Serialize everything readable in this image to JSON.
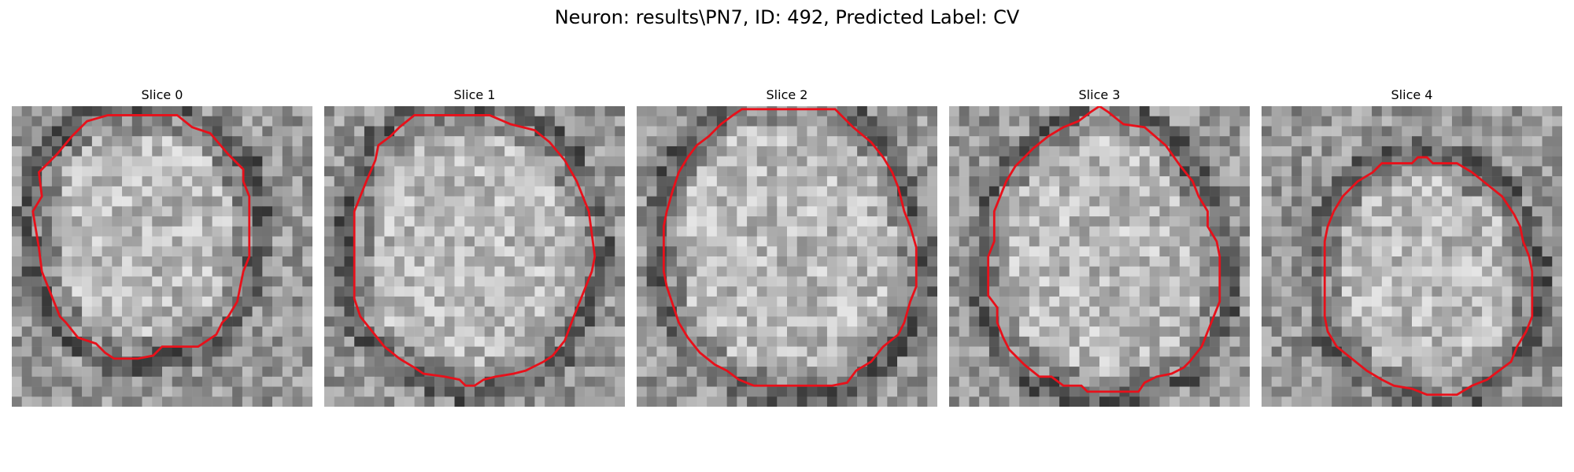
{
  "figure": {
    "suptitle": "Neuron: results\\PN7, ID: 492, Predicted Label: CV"
  },
  "panels": [
    {
      "title": "Slice 0",
      "outline": [
        [
          0.25,
          0.05
        ],
        [
          0.32,
          0.03
        ],
        [
          0.55,
          0.03
        ],
        [
          0.6,
          0.07
        ],
        [
          0.66,
          0.09
        ],
        [
          0.72,
          0.16
        ],
        [
          0.77,
          0.21
        ],
        [
          0.77,
          0.25
        ],
        [
          0.79,
          0.3
        ],
        [
          0.79,
          0.5
        ],
        [
          0.77,
          0.55
        ],
        [
          0.75,
          0.65
        ],
        [
          0.72,
          0.7
        ],
        [
          0.7,
          0.72
        ],
        [
          0.68,
          0.76
        ],
        [
          0.62,
          0.8
        ],
        [
          0.58,
          0.8
        ],
        [
          0.5,
          0.8
        ],
        [
          0.48,
          0.82
        ],
        [
          0.47,
          0.83
        ],
        [
          0.42,
          0.84
        ],
        [
          0.34,
          0.84
        ],
        [
          0.31,
          0.82
        ],
        [
          0.28,
          0.79
        ],
        [
          0.22,
          0.77
        ],
        [
          0.18,
          0.72
        ],
        [
          0.16,
          0.7
        ],
        [
          0.14,
          0.65
        ],
        [
          0.12,
          0.6
        ],
        [
          0.1,
          0.55
        ],
        [
          0.09,
          0.47
        ],
        [
          0.07,
          0.35
        ],
        [
          0.1,
          0.3
        ],
        [
          0.09,
          0.22
        ],
        [
          0.12,
          0.19
        ],
        [
          0.15,
          0.16
        ],
        [
          0.2,
          0.1
        ]
      ]
    },
    {
      "title": "Slice 1",
      "outline": [
        [
          0.3,
          0.03
        ],
        [
          0.55,
          0.03
        ],
        [
          0.62,
          0.06
        ],
        [
          0.7,
          0.08
        ],
        [
          0.75,
          0.12
        ],
        [
          0.8,
          0.18
        ],
        [
          0.84,
          0.25
        ],
        [
          0.86,
          0.3
        ],
        [
          0.88,
          0.35
        ],
        [
          0.9,
          0.5
        ],
        [
          0.89,
          0.55
        ],
        [
          0.87,
          0.6
        ],
        [
          0.85,
          0.65
        ],
        [
          0.83,
          0.7
        ],
        [
          0.8,
          0.78
        ],
        [
          0.76,
          0.83
        ],
        [
          0.73,
          0.85
        ],
        [
          0.67,
          0.88
        ],
        [
          0.63,
          0.89
        ],
        [
          0.57,
          0.9
        ],
        [
          0.53,
          0.91
        ],
        [
          0.5,
          0.93
        ],
        [
          0.47,
          0.93
        ],
        [
          0.45,
          0.91
        ],
        [
          0.4,
          0.9
        ],
        [
          0.33,
          0.89
        ],
        [
          0.3,
          0.87
        ],
        [
          0.25,
          0.84
        ],
        [
          0.2,
          0.8
        ],
        [
          0.16,
          0.75
        ],
        [
          0.12,
          0.7
        ],
        [
          0.1,
          0.64
        ],
        [
          0.1,
          0.55
        ],
        [
          0.1,
          0.35
        ],
        [
          0.12,
          0.3
        ],
        [
          0.14,
          0.25
        ],
        [
          0.17,
          0.18
        ],
        [
          0.18,
          0.13
        ],
        [
          0.22,
          0.1
        ],
        [
          0.25,
          0.07
        ]
      ]
    },
    {
      "title": "Slice 2",
      "outline": [
        [
          0.32,
          0.03
        ],
        [
          0.35,
          0.01
        ],
        [
          0.66,
          0.01
        ],
        [
          0.7,
          0.05
        ],
        [
          0.72,
          0.07
        ],
        [
          0.78,
          0.12
        ],
        [
          0.82,
          0.17
        ],
        [
          0.85,
          0.22
        ],
        [
          0.87,
          0.27
        ],
        [
          0.89,
          0.35
        ],
        [
          0.91,
          0.4
        ],
        [
          0.93,
          0.47
        ],
        [
          0.93,
          0.6
        ],
        [
          0.91,
          0.65
        ],
        [
          0.89,
          0.72
        ],
        [
          0.87,
          0.76
        ],
        [
          0.82,
          0.8
        ],
        [
          0.78,
          0.85
        ],
        [
          0.73,
          0.88
        ],
        [
          0.7,
          0.92
        ],
        [
          0.65,
          0.93
        ],
        [
          0.39,
          0.93
        ],
        [
          0.34,
          0.91
        ],
        [
          0.3,
          0.88
        ],
        [
          0.26,
          0.86
        ],
        [
          0.21,
          0.82
        ],
        [
          0.17,
          0.77
        ],
        [
          0.14,
          0.72
        ],
        [
          0.12,
          0.66
        ],
        [
          0.1,
          0.6
        ],
        [
          0.09,
          0.55
        ],
        [
          0.09,
          0.4
        ],
        [
          0.1,
          0.35
        ],
        [
          0.12,
          0.28
        ],
        [
          0.14,
          0.22
        ],
        [
          0.17,
          0.17
        ],
        [
          0.2,
          0.13
        ],
        [
          0.24,
          0.1
        ],
        [
          0.28,
          0.06
        ]
      ]
    },
    {
      "title": "Slice 3",
      "outline": [
        [
          0.5,
          0.0
        ],
        [
          0.53,
          0.02
        ],
        [
          0.58,
          0.06
        ],
        [
          0.65,
          0.07
        ],
        [
          0.72,
          0.13
        ],
        [
          0.77,
          0.2
        ],
        [
          0.81,
          0.25
        ],
        [
          0.83,
          0.3
        ],
        [
          0.86,
          0.35
        ],
        [
          0.86,
          0.4
        ],
        [
          0.89,
          0.45
        ],
        [
          0.9,
          0.5
        ],
        [
          0.9,
          0.65
        ],
        [
          0.88,
          0.7
        ],
        [
          0.86,
          0.75
        ],
        [
          0.84,
          0.8
        ],
        [
          0.8,
          0.85
        ],
        [
          0.78,
          0.87
        ],
        [
          0.74,
          0.89
        ],
        [
          0.69,
          0.9
        ],
        [
          0.65,
          0.92
        ],
        [
          0.63,
          0.95
        ],
        [
          0.46,
          0.95
        ],
        [
          0.44,
          0.93
        ],
        [
          0.38,
          0.93
        ],
        [
          0.34,
          0.9
        ],
        [
          0.3,
          0.9
        ],
        [
          0.25,
          0.86
        ],
        [
          0.2,
          0.81
        ],
        [
          0.18,
          0.77
        ],
        [
          0.16,
          0.72
        ],
        [
          0.16,
          0.67
        ],
        [
          0.13,
          0.63
        ],
        [
          0.13,
          0.5
        ],
        [
          0.15,
          0.45
        ],
        [
          0.15,
          0.35
        ],
        [
          0.17,
          0.3
        ],
        [
          0.19,
          0.25
        ],
        [
          0.22,
          0.2
        ],
        [
          0.25,
          0.17
        ],
        [
          0.28,
          0.14
        ],
        [
          0.33,
          0.1
        ],
        [
          0.38,
          0.07
        ],
        [
          0.43,
          0.05
        ],
        [
          0.47,
          0.02
        ]
      ]
    },
    {
      "title": "Slice 4",
      "outline": [
        [
          0.37,
          0.22
        ],
        [
          0.4,
          0.19
        ],
        [
          0.5,
          0.19
        ],
        [
          0.52,
          0.17
        ],
        [
          0.55,
          0.17
        ],
        [
          0.57,
          0.19
        ],
        [
          0.65,
          0.19
        ],
        [
          0.7,
          0.22
        ],
        [
          0.75,
          0.26
        ],
        [
          0.8,
          0.3
        ],
        [
          0.84,
          0.36
        ],
        [
          0.86,
          0.4
        ],
        [
          0.87,
          0.45
        ],
        [
          0.89,
          0.5
        ],
        [
          0.9,
          0.55
        ],
        [
          0.9,
          0.7
        ],
        [
          0.88,
          0.75
        ],
        [
          0.85,
          0.8
        ],
        [
          0.83,
          0.85
        ],
        [
          0.79,
          0.88
        ],
        [
          0.75,
          0.91
        ],
        [
          0.7,
          0.93
        ],
        [
          0.65,
          0.96
        ],
        [
          0.55,
          0.96
        ],
        [
          0.5,
          0.94
        ],
        [
          0.44,
          0.93
        ],
        [
          0.4,
          0.91
        ],
        [
          0.35,
          0.88
        ],
        [
          0.3,
          0.84
        ],
        [
          0.25,
          0.8
        ],
        [
          0.22,
          0.75
        ],
        [
          0.21,
          0.7
        ],
        [
          0.21,
          0.45
        ],
        [
          0.22,
          0.4
        ],
        [
          0.24,
          0.35
        ],
        [
          0.27,
          0.3
        ],
        [
          0.32,
          0.25
        ]
      ]
    }
  ],
  "colors": {
    "outline": "#e8101a",
    "background": "#ffffff"
  }
}
